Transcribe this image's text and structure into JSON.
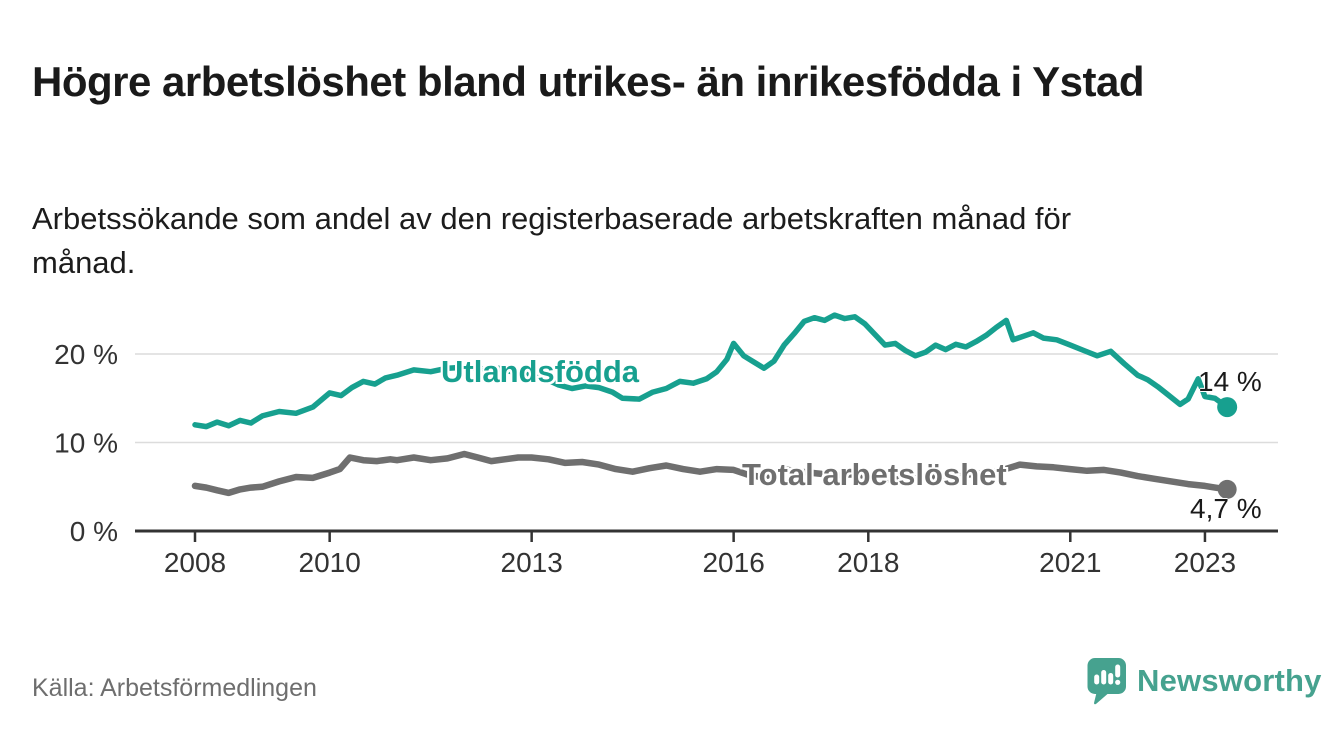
{
  "header": {
    "title": "Högre arbetslöshet bland utrikes- än inrikesfödda i Ystad",
    "subtitle": "Arbetssökande som andel av den registerbaserade arbetskraften månad för månad."
  },
  "footer": {
    "source": "Källa: Arbetsförmedlingen",
    "brand_name": "Newsworthy"
  },
  "colors": {
    "series_foreign": "#17a08f",
    "series_total": "#6f6f6f",
    "axis_line": "#333333",
    "grid_line": "#dcdcdc",
    "tick_label": "#333333",
    "text_dark": "#1a1a1a",
    "muted_text": "#6e6e6e",
    "brand_teal": "#46a28f"
  },
  "chart_data": {
    "type": "line",
    "title": "Högre arbetslöshet bland utrikes- än inrikesfödda i Ystad",
    "subtitle": "Arbetssökande som andel av den registerbaserade arbetskraften månad för månad.",
    "xlabel": "",
    "ylabel": "",
    "grid": "horizontal",
    "legend": "inline-labels",
    "x_axis": {
      "ticks": [
        2008,
        2010,
        2013,
        2016,
        2018,
        2021,
        2023
      ],
      "tick_labels": [
        "2008",
        "2010",
        "2013",
        "2016",
        "2018",
        "2021",
        "2023"
      ],
      "range": [
        2008,
        2023.33
      ]
    },
    "y_axis": {
      "ticks": [
        0,
        10,
        20
      ],
      "tick_labels": [
        "0 %",
        "10 %",
        "20 %"
      ],
      "range": [
        0,
        27
      ],
      "unit": "%"
    },
    "series": [
      {
        "name": "Utlandsfödda",
        "color": "#17a08f",
        "end_label": "14 %",
        "end_value": 14.0,
        "points": [
          [
            2008.0,
            12.0
          ],
          [
            2008.17,
            11.8
          ],
          [
            2008.33,
            12.3
          ],
          [
            2008.5,
            11.9
          ],
          [
            2008.67,
            12.5
          ],
          [
            2008.83,
            12.2
          ],
          [
            2009.0,
            13.0
          ],
          [
            2009.25,
            13.5
          ],
          [
            2009.5,
            13.3
          ],
          [
            2009.75,
            14.0
          ],
          [
            2010.0,
            15.6
          ],
          [
            2010.17,
            15.3
          ],
          [
            2010.33,
            16.2
          ],
          [
            2010.5,
            16.9
          ],
          [
            2010.67,
            16.6
          ],
          [
            2010.83,
            17.3
          ],
          [
            2011.0,
            17.6
          ],
          [
            2011.25,
            18.2
          ],
          [
            2011.5,
            18.0
          ],
          [
            2011.75,
            18.4
          ],
          [
            2012.0,
            18.5
          ],
          [
            2012.25,
            18.3
          ],
          [
            2012.5,
            18.4
          ],
          [
            2012.75,
            17.9
          ],
          [
            2013.0,
            17.6
          ],
          [
            2013.2,
            17.2
          ],
          [
            2013.4,
            16.5
          ],
          [
            2013.6,
            16.1
          ],
          [
            2013.8,
            16.4
          ],
          [
            2014.0,
            16.2
          ],
          [
            2014.2,
            15.7
          ],
          [
            2014.35,
            15.0
          ],
          [
            2014.6,
            14.9
          ],
          [
            2014.8,
            15.7
          ],
          [
            2015.0,
            16.1
          ],
          [
            2015.2,
            16.9
          ],
          [
            2015.4,
            16.7
          ],
          [
            2015.6,
            17.2
          ],
          [
            2015.75,
            18.0
          ],
          [
            2015.9,
            19.4
          ],
          [
            2016.0,
            21.2
          ],
          [
            2016.15,
            19.8
          ],
          [
            2016.3,
            19.1
          ],
          [
            2016.45,
            18.4
          ],
          [
            2016.6,
            19.2
          ],
          [
            2016.75,
            21.0
          ],
          [
            2016.9,
            22.3
          ],
          [
            2017.05,
            23.7
          ],
          [
            2017.2,
            24.1
          ],
          [
            2017.35,
            23.8
          ],
          [
            2017.5,
            24.4
          ],
          [
            2017.65,
            24.0
          ],
          [
            2017.8,
            24.2
          ],
          [
            2017.95,
            23.4
          ],
          [
            2018.1,
            22.2
          ],
          [
            2018.25,
            21.0
          ],
          [
            2018.4,
            21.2
          ],
          [
            2018.55,
            20.4
          ],
          [
            2018.7,
            19.8
          ],
          [
            2018.85,
            20.2
          ],
          [
            2019.0,
            21.0
          ],
          [
            2019.15,
            20.5
          ],
          [
            2019.3,
            21.1
          ],
          [
            2019.45,
            20.8
          ],
          [
            2019.6,
            21.4
          ],
          [
            2019.75,
            22.1
          ],
          [
            2019.9,
            23.0
          ],
          [
            2020.05,
            23.8
          ],
          [
            2020.15,
            21.6
          ],
          [
            2020.3,
            22.0
          ],
          [
            2020.45,
            22.4
          ],
          [
            2020.6,
            21.8
          ],
          [
            2020.8,
            21.6
          ],
          [
            2021.0,
            21.0
          ],
          [
            2021.2,
            20.4
          ],
          [
            2021.4,
            19.8
          ],
          [
            2021.6,
            20.3
          ],
          [
            2021.8,
            18.9
          ],
          [
            2022.0,
            17.6
          ],
          [
            2022.15,
            17.1
          ],
          [
            2022.3,
            16.3
          ],
          [
            2022.45,
            15.4
          ],
          [
            2022.63,
            14.3
          ],
          [
            2022.75,
            14.9
          ],
          [
            2022.9,
            17.2
          ],
          [
            2023.0,
            15.2
          ],
          [
            2023.15,
            15.0
          ],
          [
            2023.33,
            14.0
          ]
        ]
      },
      {
        "name": "Total arbetslöshet",
        "color": "#6f6f6f",
        "end_label": "4,7 %",
        "end_value": 4.7,
        "points": [
          [
            2008.0,
            5.1
          ],
          [
            2008.17,
            4.9
          ],
          [
            2008.33,
            4.6
          ],
          [
            2008.5,
            4.3
          ],
          [
            2008.67,
            4.7
          ],
          [
            2008.83,
            4.9
          ],
          [
            2009.0,
            5.0
          ],
          [
            2009.25,
            5.6
          ],
          [
            2009.5,
            6.1
          ],
          [
            2009.75,
            6.0
          ],
          [
            2010.0,
            6.6
          ],
          [
            2010.15,
            7.0
          ],
          [
            2010.3,
            8.3
          ],
          [
            2010.5,
            8.0
          ],
          [
            2010.7,
            7.9
          ],
          [
            2010.9,
            8.1
          ],
          [
            2011.0,
            8.0
          ],
          [
            2011.25,
            8.3
          ],
          [
            2011.5,
            8.0
          ],
          [
            2011.75,
            8.2
          ],
          [
            2012.0,
            8.7
          ],
          [
            2012.2,
            8.3
          ],
          [
            2012.4,
            7.9
          ],
          [
            2012.6,
            8.1
          ],
          [
            2012.8,
            8.3
          ],
          [
            2013.0,
            8.3
          ],
          [
            2013.25,
            8.1
          ],
          [
            2013.5,
            7.7
          ],
          [
            2013.75,
            7.8
          ],
          [
            2014.0,
            7.5
          ],
          [
            2014.25,
            7.0
          ],
          [
            2014.5,
            6.7
          ],
          [
            2014.75,
            7.1
          ],
          [
            2015.0,
            7.4
          ],
          [
            2015.25,
            7.0
          ],
          [
            2015.5,
            6.7
          ],
          [
            2015.75,
            7.0
          ],
          [
            2016.0,
            6.9
          ],
          [
            2016.2,
            6.4
          ],
          [
            2016.4,
            6.1
          ],
          [
            2016.6,
            6.4
          ],
          [
            2016.8,
            6.9
          ],
          [
            2017.0,
            6.7
          ],
          [
            2017.25,
            6.5
          ],
          [
            2017.5,
            6.3
          ],
          [
            2017.75,
            6.4
          ],
          [
            2018.0,
            6.2
          ],
          [
            2018.25,
            5.9
          ],
          [
            2018.5,
            5.8
          ],
          [
            2018.75,
            6.0
          ],
          [
            2019.0,
            6.2
          ],
          [
            2019.25,
            6.1
          ],
          [
            2019.5,
            6.4
          ],
          [
            2019.75,
            6.6
          ],
          [
            2020.0,
            6.9
          ],
          [
            2020.25,
            7.5
          ],
          [
            2020.5,
            7.3
          ],
          [
            2020.75,
            7.2
          ],
          [
            2021.0,
            7.0
          ],
          [
            2021.25,
            6.8
          ],
          [
            2021.5,
            6.9
          ],
          [
            2021.75,
            6.6
          ],
          [
            2022.0,
            6.2
          ],
          [
            2022.25,
            5.9
          ],
          [
            2022.5,
            5.6
          ],
          [
            2022.75,
            5.3
          ],
          [
            2023.0,
            5.1
          ],
          [
            2023.15,
            4.9
          ],
          [
            2023.33,
            4.7
          ]
        ]
      }
    ]
  }
}
